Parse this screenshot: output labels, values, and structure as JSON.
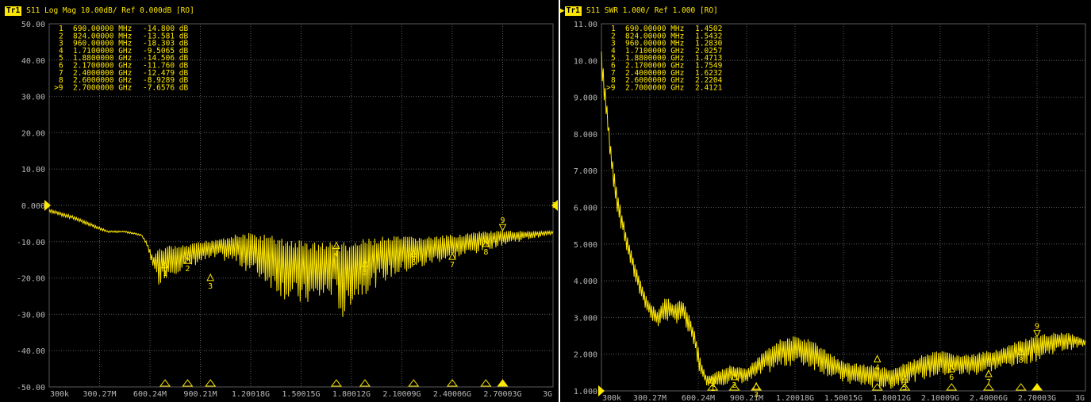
{
  "colors": {
    "trace": "#ffe800",
    "grid": "#5a5a5a",
    "background": "#000000",
    "tick_text": "#b8b8b8"
  },
  "left": {
    "header_badge": "Tr1",
    "header_text": "S11 Log Mag 10.00dB/ Ref 0.000dB [RO]",
    "ref_value_label": "0.000"
  },
  "right": {
    "header_badge": "Tr1",
    "header_text": "S11 SWR 1.000/ Ref 1.000 [RO]"
  },
  "chart_data": [
    {
      "type": "line",
      "title": "S11 Log Mag 10.00dB/ Ref 0.000dB [RO]",
      "ylim": [
        -50,
        50
      ],
      "y_ticks": [
        "50.00",
        "40.00",
        "30.00",
        "20.00",
        "10.00",
        "0.000",
        "-10.00",
        "-20.00",
        "-30.00",
        "-40.00",
        "-50.00"
      ],
      "x_range_mhz": [
        0.3,
        3000
      ],
      "x_ticks": [
        "300k",
        "300.27M",
        "600.24M",
        "900.21M",
        "1.20018G",
        "1.50015G",
        "1.80012G",
        "2.10009G",
        "2.40006G",
        "2.70003G",
        "3G"
      ],
      "envelope_mhz": [
        0.3,
        150,
        250,
        350,
        450,
        550,
        580,
        600,
        620,
        650,
        700,
        800,
        900,
        1000,
        1100,
        1200,
        1300,
        1400,
        1500,
        1600,
        1700,
        1750,
        1800,
        1900,
        2000,
        2100,
        2200,
        2300,
        2400,
        2500,
        2600,
        2700,
        2800,
        2900,
        3000
      ],
      "envelope_upper": [
        -1,
        -3,
        -5,
        -7,
        -7,
        -8,
        -10,
        -12,
        -14,
        -12,
        -11,
        -11,
        -10,
        -9,
        -8,
        -7.5,
        -8,
        -9,
        -9.5,
        -10,
        -10,
        -10,
        -10,
        -9,
        -8.5,
        -8.5,
        -8.5,
        -8.5,
        -8,
        -7.5,
        -7,
        -7,
        -7,
        -7,
        -7
      ],
      "envelope_lower": [
        -2,
        -4,
        -6,
        -7.5,
        -7.5,
        -8.5,
        -11,
        -14,
        -18,
        -22,
        -20,
        -18,
        -16,
        -15,
        -16,
        -19,
        -22,
        -26,
        -28,
        -27,
        -25,
        -33,
        -27,
        -24,
        -21,
        -19,
        -18,
        -16,
        -15,
        -14,
        -12.5,
        -11,
        -10,
        -9,
        -8
      ],
      "markers": [
        {
          "id": "1",
          "freq_label": "690.00000 MHz",
          "freq_mhz": 690,
          "value": "-14.800",
          "unit": "dB",
          "active": false
        },
        {
          "id": "2",
          "freq_label": "824.00000 MHz",
          "freq_mhz": 824,
          "value": "-13.581",
          "unit": "dB",
          "active": false
        },
        {
          "id": "3",
          "freq_label": "960.00000 MHz",
          "freq_mhz": 960,
          "value": "-18.303",
          "unit": "dB",
          "active": false
        },
        {
          "id": "4",
          "freq_label": "1.7100000 GHz",
          "freq_mhz": 1710,
          "value": "-9.5065",
          "unit": "dB",
          "active": false
        },
        {
          "id": "5",
          "freq_label": "1.8800000 GHz",
          "freq_mhz": 1880,
          "value": "-14.506",
          "unit": "dB",
          "active": false
        },
        {
          "id": "6",
          "freq_label": "2.1700000 GHz",
          "freq_mhz": 2170,
          "value": "-11.760",
          "unit": "dB",
          "active": false
        },
        {
          "id": "7",
          "freq_label": "2.4000000 GHz",
          "freq_mhz": 2400,
          "value": "-12.479",
          "unit": "dB",
          "active": false
        },
        {
          "id": "8",
          "freq_label": "2.6000000 GHz",
          "freq_mhz": 2600,
          "value": "-8.9289",
          "unit": "dB",
          "active": false
        },
        {
          "id": "9",
          "freq_label": "2.7000000 GHz",
          "freq_mhz": 2700,
          "value": "-7.6576",
          "unit": "dB",
          "active": true
        }
      ]
    },
    {
      "type": "line",
      "title": "S11 SWR 1.000/ Ref 1.000 [RO]",
      "ylim": [
        1,
        11
      ],
      "y_ticks": [
        "11.00",
        "10.00",
        "9.000",
        "8.000",
        "7.000",
        "6.000",
        "5.000",
        "4.000",
        "3.000",
        "2.000",
        "1.000"
      ],
      "x_range_mhz": [
        0.3,
        3000
      ],
      "x_ticks": [
        "300k",
        "300.27M",
        "600.24M",
        "900.21M",
        "1.20018G",
        "1.50015G",
        "1.80012G",
        "2.10009G",
        "2.40006G",
        "2.70003G",
        "3G"
      ],
      "envelope_mhz": [
        0.3,
        30,
        60,
        100,
        150,
        200,
        250,
        300,
        350,
        400,
        450,
        500,
        550,
        580,
        600,
        620,
        650,
        700,
        800,
        900,
        1000,
        1100,
        1200,
        1300,
        1400,
        1500,
        1600,
        1700,
        1800,
        1900,
        2000,
        2100,
        2200,
        2300,
        2400,
        2500,
        2600,
        2700,
        2800,
        2900,
        3000
      ],
      "envelope_upper": [
        10.3,
        9.0,
        7.6,
        6.4,
        5.4,
        4.6,
        3.9,
        3.4,
        3.2,
        3.6,
        3.4,
        3.5,
        3.0,
        2.6,
        2.2,
        1.8,
        1.4,
        1.5,
        1.7,
        1.6,
        2.1,
        2.4,
        2.5,
        2.4,
        2.1,
        1.8,
        1.75,
        1.7,
        1.6,
        1.8,
        2.0,
        2.1,
        2.0,
        2.0,
        2.1,
        2.2,
        2.4,
        2.5,
        2.6,
        2.6,
        2.4
      ],
      "envelope_lower": [
        9.5,
        8.4,
        7.0,
        5.8,
        4.9,
        4.1,
        3.4,
        3.0,
        2.7,
        2.9,
        2.8,
        2.9,
        2.4,
        2.1,
        1.6,
        1.3,
        1.15,
        1.1,
        1.2,
        1.2,
        1.4,
        1.6,
        1.7,
        1.6,
        1.4,
        1.2,
        1.1,
        1.05,
        1.05,
        1.2,
        1.3,
        1.4,
        1.4,
        1.4,
        1.5,
        1.6,
        1.7,
        1.8,
        2.0,
        2.1,
        2.2
      ],
      "markers": [
        {
          "id": "1",
          "freq_label": "690.00000 MHz",
          "freq_mhz": 690,
          "value": "1.4502",
          "unit": "",
          "active": false
        },
        {
          "id": "2",
          "freq_label": "824.00000 MHz",
          "freq_mhz": 824,
          "value": "1.5432",
          "unit": "",
          "active": false
        },
        {
          "id": "3",
          "freq_label": "960.00000 MHz",
          "freq_mhz": 960,
          "value": "1.2830",
          "unit": "",
          "active": false
        },
        {
          "id": "4",
          "freq_label": "1.7100000 GHz",
          "freq_mhz": 1710,
          "value": "2.0257",
          "unit": "",
          "active": false
        },
        {
          "id": "5",
          "freq_label": "1.8800000 GHz",
          "freq_mhz": 1880,
          "value": "1.4713",
          "unit": "",
          "active": false
        },
        {
          "id": "6",
          "freq_label": "2.1700000 GHz",
          "freq_mhz": 2170,
          "value": "1.7549",
          "unit": "",
          "active": false
        },
        {
          "id": "7",
          "freq_label": "2.4000000 GHz",
          "freq_mhz": 2400,
          "value": "1.6232",
          "unit": "",
          "active": false
        },
        {
          "id": "8",
          "freq_label": "2.6000000 GHz",
          "freq_mhz": 2600,
          "value": "2.2204",
          "unit": "",
          "active": false
        },
        {
          "id": "9",
          "freq_label": "2.7000000 GHz",
          "freq_mhz": 2700,
          "value": "2.4121",
          "unit": "",
          "active": true
        }
      ]
    }
  ]
}
